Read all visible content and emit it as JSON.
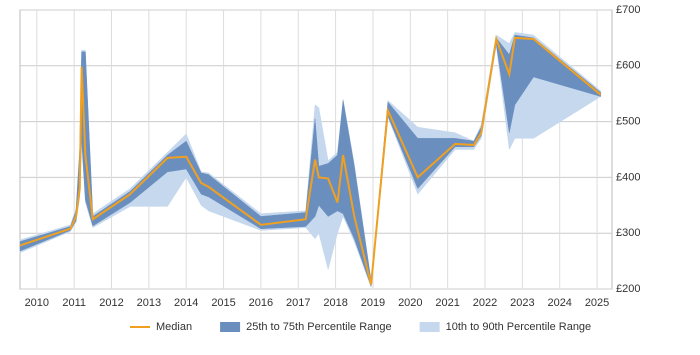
{
  "chart_data": {
    "type": "line",
    "x": [
      2009.55,
      2010.9,
      2011.05,
      2011.15,
      2011.2,
      2011.3,
      2011.5,
      2012.5,
      2013.5,
      2014.0,
      2014.4,
      2014.6,
      2016.0,
      2017.2,
      2017.45,
      2017.55,
      2017.8,
      2018.05,
      2018.2,
      2018.5,
      2018.95,
      2019.4,
      2020.2,
      2021.2,
      2021.7,
      2021.9,
      2022.3,
      2022.65,
      2022.8,
      2023.3,
      2025.1
    ],
    "series": [
      {
        "name": "Median",
        "color": "#f0a020",
        "values": [
          278,
          308,
          330,
          380,
          598,
          440,
          325,
          370,
          435,
          437,
          390,
          383,
          315,
          325,
          432,
          400,
          398,
          355,
          440,
          330,
          208,
          520,
          400,
          460,
          458,
          480,
          648,
          585,
          650,
          648,
          548
        ]
      },
      {
        "name": "25th to 75th Percentile Range",
        "color": "#6a8fbf",
        "low": [
          268,
          305,
          322,
          370,
          470,
          360,
          313,
          355,
          410,
          415,
          370,
          365,
          308,
          312,
          330,
          350,
          330,
          340,
          335,
          290,
          205,
          510,
          380,
          455,
          455,
          475,
          640,
          480,
          530,
          580,
          545
        ],
        "high": [
          285,
          312,
          340,
          450,
          625,
          625,
          330,
          375,
          440,
          465,
          408,
          405,
          330,
          337,
          505,
          420,
          425,
          440,
          538,
          420,
          215,
          535,
          470,
          470,
          465,
          490,
          650,
          620,
          655,
          650,
          552
        ]
      },
      {
        "name": "10th to 90th Percentile Range",
        "color": "#c5d8ee",
        "low": [
          265,
          303,
          320,
          365,
          460,
          355,
          310,
          348,
          348,
          400,
          350,
          340,
          305,
          310,
          290,
          300,
          235,
          300,
          330,
          285,
          203,
          508,
          370,
          450,
          450,
          470,
          635,
          450,
          470,
          470,
          545
        ],
        "high": [
          288,
          315,
          345,
          455,
          628,
          628,
          335,
          380,
          445,
          478,
          410,
          408,
          335,
          340,
          530,
          525,
          430,
          445,
          540,
          425,
          215,
          538,
          490,
          480,
          465,
          495,
          655,
          640,
          660,
          655,
          555
        ]
      }
    ],
    "xlim": [
      2009.55,
      2025.4
    ],
    "xticks": [
      2010,
      2011,
      2012,
      2013,
      2014,
      2015,
      2016,
      2017,
      2018,
      2019,
      2020,
      2021,
      2022,
      2023,
      2024,
      2025
    ],
    "ylim": [
      200,
      700
    ],
    "yticks": [
      {
        "value": 200,
        "label": "£200"
      },
      {
        "value": 300,
        "label": "£300"
      },
      {
        "value": 400,
        "label": "£400"
      },
      {
        "value": 500,
        "label": "£500"
      },
      {
        "value": 600,
        "label": "£600"
      },
      {
        "value": 700,
        "label": "£700"
      }
    ],
    "grid": true
  }
}
